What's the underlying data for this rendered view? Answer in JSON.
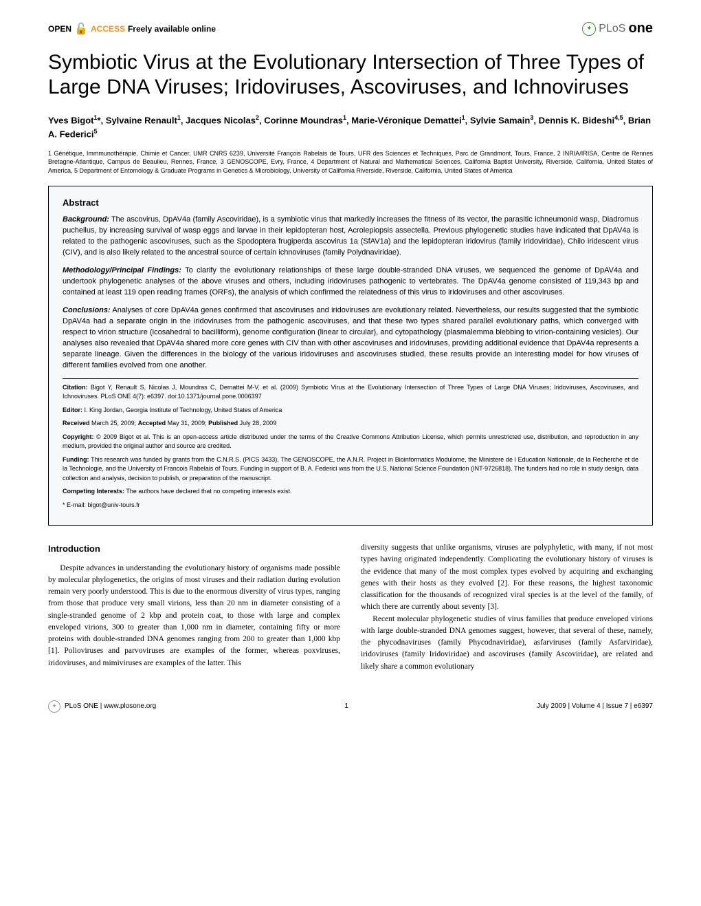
{
  "header": {
    "open": "OPEN",
    "access": "ACCESS",
    "freely": "Freely available online",
    "plos": "PLoS",
    "one": "one"
  },
  "title": "Symbiotic Virus at the Evolutionary Intersection of Three Types of Large DNA Viruses; Iridoviruses, Ascoviruses, and Ichnoviruses",
  "authors_html": "Yves Bigot<sup>1</sup>*, Sylvaine Renault<sup>1</sup>, Jacques Nicolas<sup>2</sup>, Corinne Moundras<sup>1</sup>, Marie-Véronique Demattei<sup>1</sup>, Sylvie Samain<sup>3</sup>, Dennis K. Bideshi<sup>4,5</sup>, Brian A. Federici<sup>5</sup>",
  "affiliations": "1 Génétique, Immmunothérapie, Chimie et Cancer, UMR CNRS 6239, Université François Rabelais de Tours, UFR des Sciences et Techniques, Parc de Grandmont, Tours, France, 2 INRIA/IRISA, Centre de Rennes Bretagne-Atlantique, Campus de Beaulieu, Rennes, France, 3 GENOSCOPE, Evry, France, 4 Department of Natural and Mathematical Sciences, California Baptist University, Riverside, California, United States of America, 5 Department of Entomology & Graduate Programs in Genetics & Microbiology, University of California Riverside, Riverside, California, United States of America",
  "abstract": {
    "heading": "Abstract",
    "background_label": "Background:",
    "background": " The ascovirus, DpAV4a (family Ascoviridae), is a symbiotic virus that markedly increases the fitness of its vector, the parasitic ichneumonid wasp, Diadromus puchellus, by increasing survival of wasp eggs and larvae in their lepidopteran host, Acrolepiopsis assectella. Previous phylogenetic studies have indicated that DpAV4a is related to the pathogenic ascoviruses, such as the Spodoptera frugiperda ascovirus 1a (SfAV1a) and the lepidopteran iridovirus (family Iridoviridae), Chilo iridescent virus (CIV), and is also likely related to the ancestral source of certain ichnoviruses (family Polydnaviridae).",
    "methods_label": "Methodology/Principal Findings:",
    "methods": " To clarify the evolutionary relationships of these large double-stranded DNA viruses, we sequenced the genome of DpAV4a and undertook phylogenetic analyses of the above viruses and others, including iridoviruses pathogenic to vertebrates. The DpAV4a genome consisted of 119,343 bp and contained at least 119 open reading frames (ORFs), the analysis of which confirmed the relatedness of this virus to iridoviruses and other ascoviruses.",
    "conclusions_label": "Conclusions:",
    "conclusions": " Analyses of core DpAV4a genes confirmed that ascoviruses and iridoviruses are evolutionary related. Nevertheless, our results suggested that the symbiotic DpAV4a had a separate origin in the iridoviruses from the pathogenic ascoviruses, and that these two types shared parallel evolutionary paths, which converged with respect to virion structure (icosahedral to bacilliform), genome configuration (linear to circular), and cytopathology (plasmalemma blebbing to virion-containing vesicles). Our analyses also revealed that DpAV4a shared more core genes with CIV than with other ascoviruses and iridoviruses, providing additional evidence that DpAV4a represents a separate lineage. Given the differences in the biology of the various iridoviruses and ascoviruses studied, these results provide an interesting model for how viruses of different families evolved from one another."
  },
  "meta": {
    "citation_label": "Citation:",
    "citation": " Bigot Y, Renault S, Nicolas J, Moundras C, Demattei M-V, et al. (2009) Symbiotic Virus at the Evolutionary Intersection of Three Types of Large DNA Viruses; Iridoviruses, Ascoviruses, and Ichnoviruses. PLoS ONE 4(7): e6397. doi:10.1371/journal.pone.0006397",
    "editor_label": "Editor:",
    "editor": " I. King Jordan, Georgia Institute of Technology, United States of America",
    "received_label": "Received",
    "received": " March 25, 2009; ",
    "accepted_label": "Accepted",
    "accepted": " May 31, 2009; ",
    "published_label": "Published",
    "published": " July 28, 2009",
    "copyright_label": "Copyright:",
    "copyright": " © 2009 Bigot et al. This is an open-access article distributed under the terms of the Creative Commons Attribution License, which permits unrestricted use, distribution, and reproduction in any medium, provided the original author and source are credited.",
    "funding_label": "Funding:",
    "funding": " This research was funded by grants from the C.N.R.S. (PICS 3433), The GENOSCOPE, the A.N.R. Project in Bioinformatics Modulome, the Ministere de l Education Nationale, de la Recherche et de la Technologie, and the University of Francois Rabelais of Tours. Funding in support of B. A. Federici was from the U.S. National Science Foundation (INT-9726818). The funders had no role in study design, data collection and analysis, decision to publish, or preparation of the manuscript.",
    "competing_label": "Competing Interests:",
    "competing": " The authors have declared that no competing interests exist.",
    "email": "* E-mail: bigot@univ-tours.fr"
  },
  "body": {
    "intro_heading": "Introduction",
    "col1_p1": "Despite advances in understanding the evolutionary history of organisms made possible by molecular phylogenetics, the origins of most viruses and their radiation during evolution remain very poorly understood. This is due to the enormous diversity of virus types, ranging from those that produce very small virions, less than 20 nm in diameter consisting of a single-stranded genome of 2 kbp and protein coat, to those with large and complex enveloped virions, 300 to greater than 1,000 nm in diameter, containing fifty or more proteins with double-stranded DNA genomes ranging from 200 to greater than 1,000 kbp [1]. Polioviruses and parvoviruses are examples of the former, whereas poxviruses, iridoviruses, and mimiviruses are examples of the latter. This",
    "col2_p1": "diversity suggests that unlike organisms, viruses are polyphyletic, with many, if not most types having originated independently. Complicating the evolutionary history of viruses is the evidence that many of the most complex types evolved by acquiring and exchanging genes with their hosts as they evolved [2]. For these reasons, the highest taxonomic classification for the thousands of recognized viral species is at the level of the family, of which there are currently about seventy [3].",
    "col2_p2": "Recent molecular phylogenetic studies of virus families that produce enveloped virions with large double-stranded DNA genomes suggest, however, that several of these, namely, the phycodnaviruses (family Phycodnaviridae), asfarviruses (family Asfarviridae), iridoviruses (family Iridoviridae) and ascoviruses (family Ascoviridae), are related and likely share a common evolutionary"
  },
  "footer": {
    "site": "PLoS ONE | www.plosone.org",
    "page": "1",
    "issue": "July 2009 | Volume 4 | Issue 7 | e6397"
  }
}
